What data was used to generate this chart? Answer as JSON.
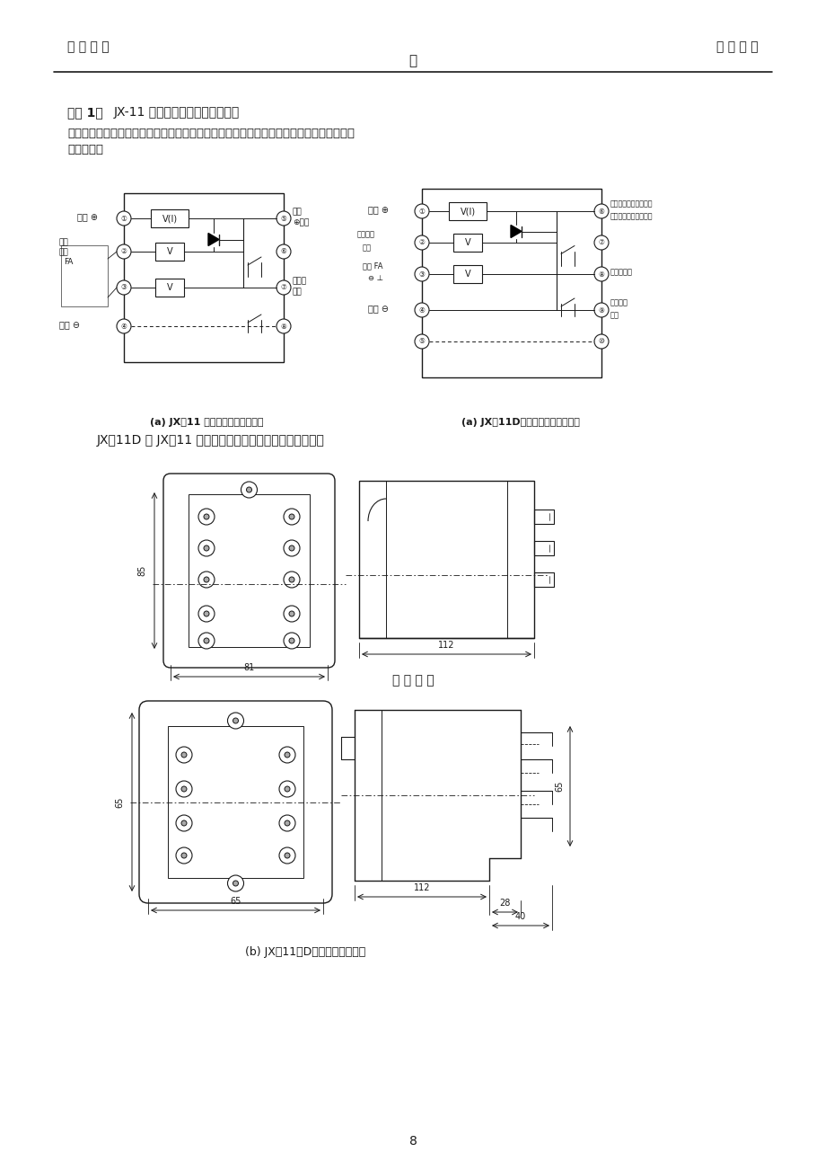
{
  "page_title_left": "苏 瑞 电 气",
  "page_title_right": "继 电 器 元",
  "page_title_center": "件",
  "section_title_bold": "附图 1：",
  "section_title_normal": "JX-11 继电器接线图及外型尺寸图",
  "section_text1": "为了更换方便，原屏上安装接线开有五个圆孔的，用户可提出加配过渡接线板，不必在原屏",
  "section_text2": "上补开孔。",
  "caption_a1": "(a) JX－11 继电器接线图（前视）",
  "caption_a2": "(a) JX－11D继电器接线图（前视）",
  "caption_jx11d": "JX－11D 与 JX－11 外型尺寸相同，只是多一付接线端子。",
  "caption_front": "板 前 接 线",
  "caption_b": "(b) JX－11（D）继电器外型尺寸",
  "page_number": "8",
  "left_labels_d1": [
    "启动 ⊕",
    "辅助",
    "电源",
    "FA",
    "⊖ ⊥",
    "⊖ ⊥",
    "启动 ⊖"
  ],
  "right_labels_d1": [
    "辅助",
    "⊕电源",
    "磁保持",
    "接点"
  ],
  "bg_color": "#ffffff",
  "text_color": "#1a1a1a",
  "line_color": "#1a1a1a"
}
